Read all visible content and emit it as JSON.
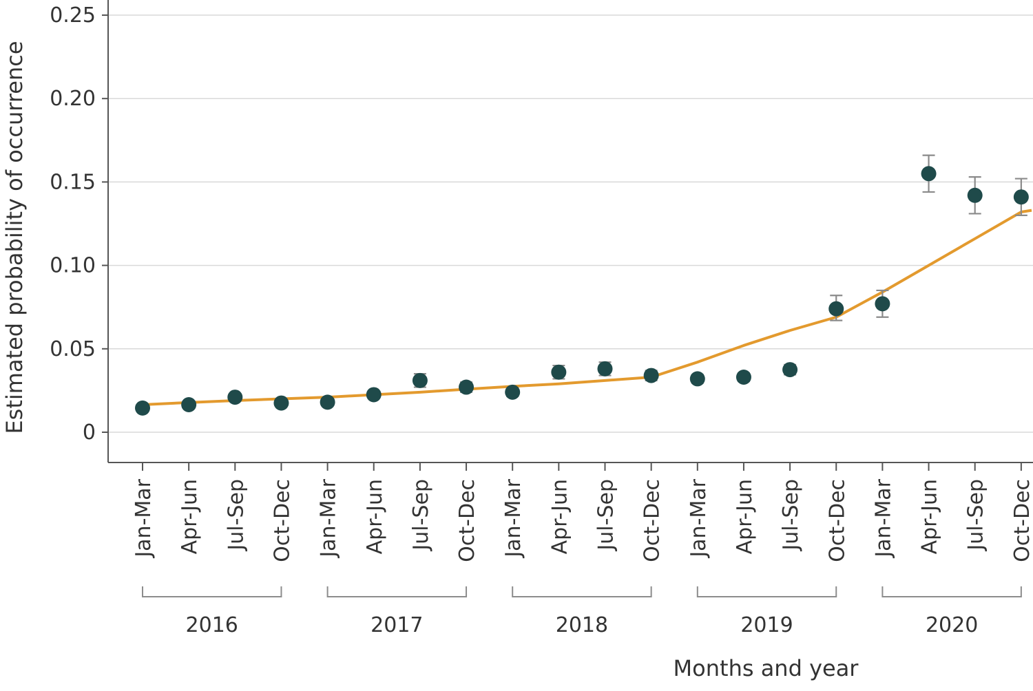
{
  "chart_data": {
    "type": "scatter",
    "title": "",
    "xlabel": "Months and year",
    "ylabel": "Estimated probability of occurrence",
    "ylim": [
      0,
      0.25
    ],
    "yticks": [
      0,
      0.05,
      0.1,
      0.15,
      0.2,
      0.25
    ],
    "ytick_labels": [
      "0",
      "0.05",
      "0.10",
      "0.15",
      "0.20",
      "0.25"
    ],
    "grid": true,
    "legend": "none",
    "colors": {
      "points": "#1f4a4a",
      "trend": "#e39a2e",
      "error_bars": "#8a8a8a"
    },
    "years": [
      {
        "label": "2016",
        "quarters": [
          "Jan-Mar",
          "Apr-Jun",
          "Jul-Sep",
          "Oct-Dec"
        ]
      },
      {
        "label": "2017",
        "quarters": [
          "Jan-Mar",
          "Apr-Jun",
          "Jul-Sep",
          "Oct-Dec"
        ]
      },
      {
        "label": "2018",
        "quarters": [
          "Jan-Mar",
          "Apr-Jun",
          "Jul-Sep",
          "Oct-Dec"
        ]
      },
      {
        "label": "2019",
        "quarters": [
          "Jan-Mar",
          "Apr-Jun",
          "Jul-Sep",
          "Oct-Dec"
        ]
      },
      {
        "label": "2020",
        "quarters": [
          "Jan-Mar",
          "Apr-Jun",
          "Jul-Sep",
          "Oct-Dec"
        ]
      }
    ],
    "observed": {
      "values": [
        0.0145,
        0.0165,
        0.021,
        0.0175,
        0.018,
        0.0225,
        0.031,
        0.027,
        0.024,
        0.036,
        0.038,
        0.034,
        0.032,
        0.033,
        0.0375,
        0.074,
        0.077,
        0.155,
        0.142,
        0.141
      ],
      "lower": [
        0.0125,
        0.0145,
        0.019,
        0.0155,
        0.016,
        0.0205,
        0.027,
        0.024,
        0.0215,
        0.032,
        0.034,
        0.031,
        0.0295,
        0.0305,
        0.0345,
        0.067,
        0.069,
        0.144,
        0.131,
        0.13
      ],
      "upper": [
        0.0165,
        0.0185,
        0.023,
        0.0195,
        0.02,
        0.0245,
        0.035,
        0.03,
        0.0265,
        0.04,
        0.042,
        0.037,
        0.0345,
        0.0355,
        0.0405,
        0.082,
        0.085,
        0.166,
        0.153,
        0.152
      ]
    },
    "trend": {
      "values": [
        0.0165,
        0.0178,
        0.019,
        0.02,
        0.021,
        0.0225,
        0.024,
        0.0258,
        0.0275,
        0.029,
        0.031,
        0.033,
        0.042,
        0.052,
        0.061,
        0.069,
        0.084,
        0.1,
        0.116,
        0.132
      ]
    }
  }
}
